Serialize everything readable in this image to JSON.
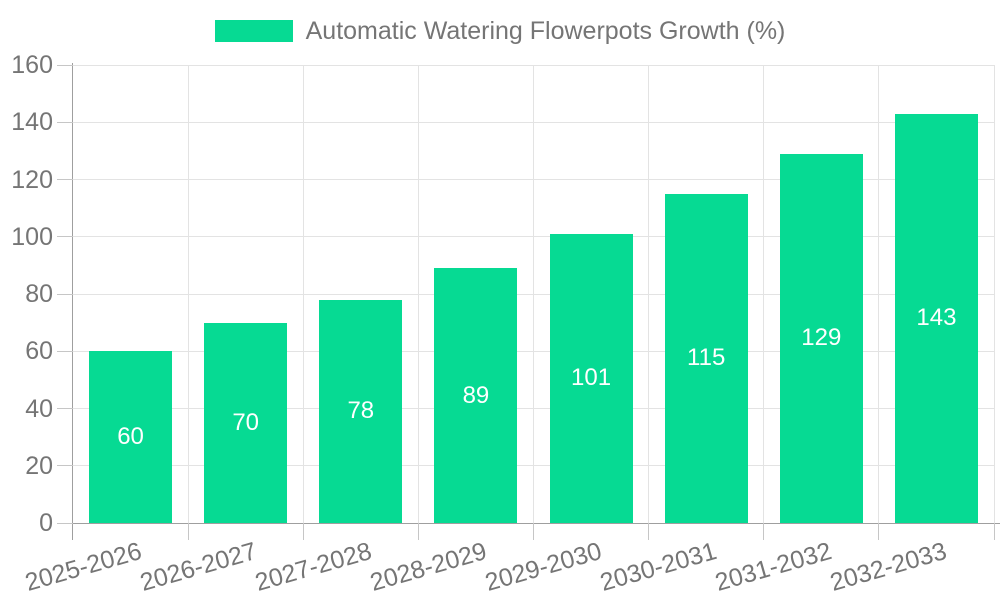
{
  "legend": {
    "label": "Automatic Watering Flowerpots Growth (%)"
  },
  "chart_data": {
    "type": "bar",
    "title": "Automatic Watering Flowerpots Growth (%)",
    "categories": [
      "2025-2026",
      "2026-2027",
      "2027-2028",
      "2028-2029",
      "2029-2030",
      "2030-2031",
      "2031-2032",
      "2032-2033"
    ],
    "values": [
      60,
      70,
      78,
      89,
      101,
      115,
      129,
      143
    ],
    "xlabel": "",
    "ylabel": "",
    "ylim": [
      0,
      160
    ],
    "ytick_step": 20,
    "ytick_labels": [
      "0",
      "20",
      "40",
      "60",
      "80",
      "100",
      "120",
      "140",
      "160"
    ],
    "grid": true,
    "legend_position": "top",
    "bar_color": "#06da93",
    "value_label_color": "#ffffff",
    "axis_text_color": "#757575",
    "gridline_color": "#e3e3e3",
    "axis_line_color": "#9f9f9f"
  }
}
